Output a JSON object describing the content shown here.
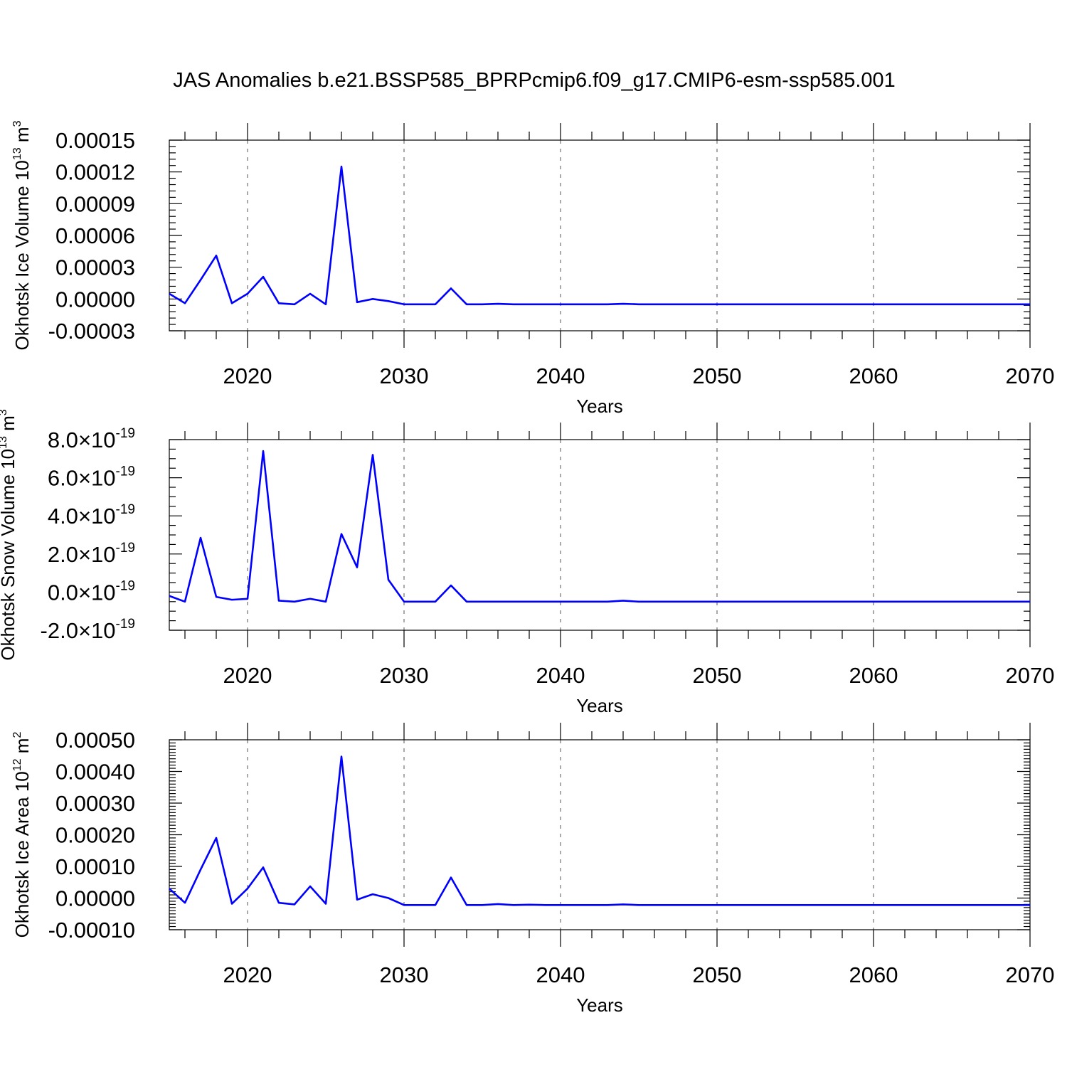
{
  "figure": {
    "title": "JAS Anomalies b.e21.BSSP585_BPRPcmip6.f09_g17.CMIP6-esm-ssp585.001"
  },
  "chart_data": [
    {
      "type": "line",
      "title": "",
      "xlabel": "Years",
      "ylabel": "Okhotsk Ice Volume",
      "ylabel_unit": {
        "base": "10",
        "exp": "13",
        "unit": "m",
        "unit_exp": "3"
      },
      "xlim": [
        2015,
        2070
      ],
      "ylim": [
        -3e-05,
        0.00015
      ],
      "x_major_ticks": [
        2020,
        2030,
        2040,
        2050,
        2060,
        2070
      ],
      "x_major_labels": [
        "2020",
        "2030",
        "2040",
        "2050",
        "2060",
        "2070"
      ],
      "y_major_ticks": [
        -3e-05,
        0,
        3e-05,
        6e-05,
        9e-05,
        0.00012,
        0.00015
      ],
      "y_major_labels": [
        "-0.00003",
        "0.00000",
        "0.00003",
        "0.00006",
        "0.00009",
        "0.00012",
        "0.00015"
      ],
      "grid": "vertical dashed at major x ticks",
      "color": "#0000ff",
      "x": [
        2015,
        2016,
        2017,
        2018,
        2019,
        2020,
        2021,
        2022,
        2023,
        2024,
        2025,
        2026,
        2027,
        2028,
        2029,
        2030,
        2031,
        2032,
        2033,
        2034,
        2035,
        2036,
        2037,
        2038,
        2039,
        2040,
        2041,
        2042,
        2043,
        2044,
        2045,
        2046,
        2047,
        2048,
        2049,
        2050,
        2051,
        2052,
        2053,
        2054,
        2055,
        2056,
        2057,
        2058,
        2059,
        2060,
        2061,
        2062,
        2063,
        2064,
        2065,
        2066,
        2067,
        2068,
        2069,
        2070
      ],
      "values": [
        5e-06,
        -4e-06,
        1.8e-05,
        4.1e-05,
        -4e-06,
        5e-06,
        2.1e-05,
        -4e-06,
        -5e-06,
        5e-06,
        -5e-06,
        0.000125,
        -3e-06,
        0.0,
        -2e-06,
        -5e-06,
        -5e-06,
        -5e-06,
        1e-05,
        -5e-06,
        -5e-06,
        -4.5e-06,
        -5e-06,
        -5e-06,
        -5e-06,
        -5e-06,
        -5e-06,
        -5e-06,
        -5e-06,
        -4.5e-06,
        -5e-06,
        -5e-06,
        -5e-06,
        -5e-06,
        -5e-06,
        -5e-06,
        -5e-06,
        -5e-06,
        -5e-06,
        -5e-06,
        -5e-06,
        -5e-06,
        -5e-06,
        -5e-06,
        -5e-06,
        -5e-06,
        -5e-06,
        -5e-06,
        -5e-06,
        -5e-06,
        -5e-06,
        -5e-06,
        -5e-06,
        -5e-06,
        -5e-06,
        -5e-06
      ]
    },
    {
      "type": "line",
      "title": "",
      "xlabel": "Years",
      "ylabel": "Okhotsk Snow Volume",
      "ylabel_unit": {
        "base": "10",
        "exp": "13",
        "unit": "m",
        "unit_exp": "3"
      },
      "xlim": [
        2015,
        2070
      ],
      "ylim": [
        -2e-19,
        8e-19
      ],
      "x_major_ticks": [
        2020,
        2030,
        2040,
        2050,
        2060,
        2070
      ],
      "x_major_labels": [
        "2020",
        "2030",
        "2040",
        "2050",
        "2060",
        "2070"
      ],
      "y_major_ticks": [
        -2e-19,
        0,
        2e-19,
        4e-19,
        6e-19,
        8e-19
      ],
      "y_major_labels": [
        {
          "mantissa": "-2.0",
          "times": "×10",
          "exp": "-19"
        },
        {
          "mantissa": "0.0",
          "times": "×10",
          "exp": "-19"
        },
        {
          "mantissa": "2.0",
          "times": "×10",
          "exp": "-19"
        },
        {
          "mantissa": "4.0",
          "times": "×10",
          "exp": "-19"
        },
        {
          "mantissa": "6.0",
          "times": "×10",
          "exp": "-19"
        },
        {
          "mantissa": "8.0",
          "times": "×10",
          "exp": "-19"
        }
      ],
      "grid": "vertical dashed at major x ticks",
      "color": "#0000ff",
      "x": [
        2015,
        2016,
        2017,
        2018,
        2019,
        2020,
        2021,
        2022,
        2023,
        2024,
        2025,
        2026,
        2027,
        2028,
        2029,
        2030,
        2031,
        2032,
        2033,
        2034,
        2035,
        2036,
        2037,
        2038,
        2039,
        2040,
        2041,
        2042,
        2043,
        2044,
        2045,
        2046,
        2047,
        2048,
        2049,
        2050,
        2051,
        2052,
        2053,
        2054,
        2055,
        2056,
        2057,
        2058,
        2059,
        2060,
        2061,
        2062,
        2063,
        2064,
        2065,
        2066,
        2067,
        2068,
        2069,
        2070
      ],
      "values": [
        -2e-20,
        -5e-20,
        2.85e-19,
        -2.5e-20,
        -4e-20,
        -3.5e-20,
        7.4e-19,
        -4.5e-20,
        -5e-20,
        -3.5e-20,
        -5e-20,
        3.05e-19,
        1.3e-19,
        7.2e-19,
        6.5e-20,
        -5e-20,
        -5e-20,
        -5e-20,
        3.5e-20,
        -5e-20,
        -5e-20,
        -5e-20,
        -5e-20,
        -5e-20,
        -5e-20,
        -5e-20,
        -5e-20,
        -5e-20,
        -5e-20,
        -4.5e-20,
        -5e-20,
        -5e-20,
        -5e-20,
        -5e-20,
        -5e-20,
        -5e-20,
        -5e-20,
        -5e-20,
        -5e-20,
        -5e-20,
        -5e-20,
        -5e-20,
        -5e-20,
        -5e-20,
        -5e-20,
        -5e-20,
        -5e-20,
        -5e-20,
        -5e-20,
        -5e-20,
        -5e-20,
        -5e-20,
        -5e-20,
        -5e-20,
        -5e-20,
        -5e-20
      ]
    },
    {
      "type": "line",
      "title": "",
      "xlabel": "Years",
      "ylabel": "Okhotsk Ice Area",
      "ylabel_unit": {
        "base": "10",
        "exp": "12",
        "unit": "m",
        "unit_exp": "2"
      },
      "xlim": [
        2015,
        2070
      ],
      "ylim": [
        -0.0001,
        0.0005
      ],
      "x_major_ticks": [
        2020,
        2030,
        2040,
        2050,
        2060,
        2070
      ],
      "x_major_labels": [
        "2020",
        "2030",
        "2040",
        "2050",
        "2060",
        "2070"
      ],
      "y_major_ticks": [
        -0.0001,
        0,
        0.0001,
        0.0002,
        0.0003,
        0.0004,
        0.0005
      ],
      "y_major_labels": [
        "-0.00010",
        "0.00000",
        "0.00010",
        "0.00020",
        "0.00030",
        "0.00040",
        "0.00050"
      ],
      "grid": "vertical dashed at major x ticks",
      "color": "#0000ff",
      "x": [
        2015,
        2016,
        2017,
        2018,
        2019,
        2020,
        2021,
        2022,
        2023,
        2024,
        2025,
        2026,
        2027,
        2028,
        2029,
        2030,
        2031,
        2032,
        2033,
        2034,
        2035,
        2036,
        2037,
        2038,
        2039,
        2040,
        2041,
        2042,
        2043,
        2044,
        2045,
        2046,
        2047,
        2048,
        2049,
        2050,
        2051,
        2052,
        2053,
        2054,
        2055,
        2056,
        2057,
        2058,
        2059,
        2060,
        2061,
        2062,
        2063,
        2064,
        2065,
        2066,
        2067,
        2068,
        2069,
        2070
      ],
      "values": [
        3e-05,
        -1.5e-05,
        9e-05,
        0.00019,
        -1.8e-05,
        3e-05,
        9.7e-05,
        -1.5e-05,
        -2e-05,
        3.7e-05,
        -1.8e-05,
        0.000447,
        -5e-06,
        1.2e-05,
        0.0,
        -2.2e-05,
        -2.2e-05,
        -2.2e-05,
        6.5e-05,
        -2.2e-05,
        -2.2e-05,
        -1.9e-05,
        -2.2e-05,
        -2.1e-05,
        -2.2e-05,
        -2.2e-05,
        -2.2e-05,
        -2.2e-05,
        -2.2e-05,
        -2e-05,
        -2.2e-05,
        -2.2e-05,
        -2.2e-05,
        -2.2e-05,
        -2.2e-05,
        -2.2e-05,
        -2.2e-05,
        -2.2e-05,
        -2.2e-05,
        -2.2e-05,
        -2.2e-05,
        -2.2e-05,
        -2.2e-05,
        -2.2e-05,
        -2.2e-05,
        -2.2e-05,
        -2.2e-05,
        -2.2e-05,
        -2.2e-05,
        -2.2e-05,
        -2.2e-05,
        -2.2e-05,
        -2.2e-05,
        -2.2e-05,
        -2.2e-05,
        -2.2e-05
      ]
    }
  ]
}
